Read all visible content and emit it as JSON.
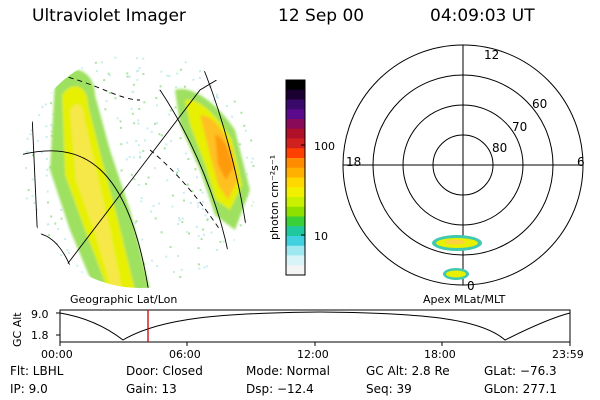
{
  "header": {
    "title": "Ultraviolet Imager",
    "date": "12 Sep 00",
    "time": "04:09:03 UT"
  },
  "colorbar": {
    "unit": "photon cm⁻²s⁻¹",
    "ticks": [
      "100",
      "10"
    ],
    "colors": [
      "#000000",
      "#1a0030",
      "#3a0a6a",
      "#5a0a8a",
      "#8a0a5a",
      "#b0102a",
      "#d02020",
      "#ff4000",
      "#ff8c00",
      "#ffb000",
      "#ffd800",
      "#f0f000",
      "#c8f000",
      "#8ee000",
      "#3ad03a",
      "#20c8a0",
      "#40d0e0",
      "#a0e8f0",
      "#d8f4f8",
      "#f4f4f4"
    ]
  },
  "left_panel": {
    "label": "Geographic Lat/Lon"
  },
  "right_panel": {
    "label": "Apex MLat/MLT",
    "mlt_labels": {
      "top": "12",
      "left": "18",
      "right": "6",
      "bottom": "0"
    },
    "lat_labels": [
      "60",
      "70",
      "80"
    ]
  },
  "timeline": {
    "ylabel": "GC Alt",
    "yticks": [
      "9.0",
      "1.8"
    ],
    "xticks": [
      "00:00",
      "06:00",
      "12:00",
      "18:00",
      "23:59"
    ],
    "marker_time": "04:09",
    "marker_color": "#cc0000"
  },
  "status": {
    "flt": "Flt: LBHL",
    "door": "Door: Closed",
    "mode": "Mode: Normal",
    "gcalt": "GC Alt: 2.8 Re",
    "glat": "GLat: −76.3",
    "ip": "IP: 9.0",
    "gain": "Gain: 13",
    "dsp": "Dsp: −12.4",
    "seq": "Seq: 39",
    "glon": "GLon: 277.1"
  }
}
